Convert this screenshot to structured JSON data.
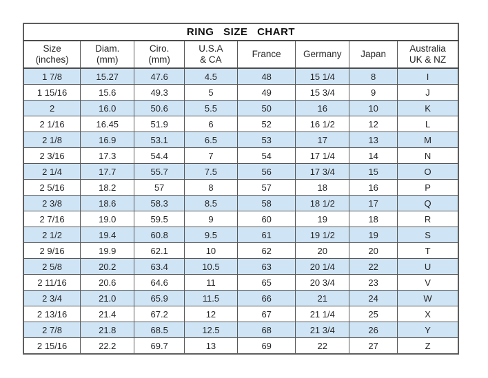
{
  "colors": {
    "row_alt_blue": "#cfe4f5",
    "row_white": "#ffffff",
    "border": "#565656",
    "text": "#262626",
    "background": "#ffffff"
  },
  "chart_data": {
    "type": "table",
    "title": "RING SIZE CHART",
    "columns": [
      {
        "key": "size-inches",
        "label": "Size (inches)",
        "line1": "Size",
        "line2": "(inches)"
      },
      {
        "key": "diam-mm",
        "label": "Diam. (mm)",
        "line1": "Diam.",
        "line2": "(mm)"
      },
      {
        "key": "ciro-mm",
        "label": "Ciro. (mm)",
        "line1": "Ciro.",
        "line2": "(mm)"
      },
      {
        "key": "usa-ca",
        "label": "U.S.A & CA",
        "line1": "U.S.A",
        "line2": "& CA"
      },
      {
        "key": "france",
        "label": "France",
        "line1": "France",
        "line2": ""
      },
      {
        "key": "germany",
        "label": "Germany",
        "line1": "Germany",
        "line2": ""
      },
      {
        "key": "japan",
        "label": "Japan",
        "line1": "Japan",
        "line2": ""
      },
      {
        "key": "australia-uk-nz",
        "label": "Australia UK & NZ",
        "line1": "Australia",
        "line2": "UK & NZ"
      }
    ],
    "rows": [
      [
        "1 7/8",
        "15.27",
        "47.6",
        "4.5",
        "48",
        "15 1/4",
        "8",
        "I"
      ],
      [
        "1 15/16",
        "15.6",
        "49.3",
        "5",
        "49",
        "15 3/4",
        "9",
        "J"
      ],
      [
        "2",
        "16.0",
        "50.6",
        "5.5",
        "50",
        "16",
        "10",
        "K"
      ],
      [
        "2 1/16",
        "16.45",
        "51.9",
        "6",
        "52",
        "16 1/2",
        "12",
        "L"
      ],
      [
        "2 1/8",
        "16.9",
        "53.1",
        "6.5",
        "53",
        "17",
        "13",
        "M"
      ],
      [
        "2 3/16",
        "17.3",
        "54.4",
        "7",
        "54",
        "17 1/4",
        "14",
        "N"
      ],
      [
        "2 1/4",
        "17.7",
        "55.7",
        "7.5",
        "56",
        "17 3/4",
        "15",
        "O"
      ],
      [
        "2 5/16",
        "18.2",
        "57",
        "8",
        "57",
        "18",
        "16",
        "P"
      ],
      [
        "2 3/8",
        "18.6",
        "58.3",
        "8.5",
        "58",
        "18 1/2",
        "17",
        "Q"
      ],
      [
        "2 7/16",
        "19.0",
        "59.5",
        "9",
        "60",
        "19",
        "18",
        "R"
      ],
      [
        "2 1/2",
        "19.4",
        "60.8",
        "9.5",
        "61",
        "19 1/2",
        "19",
        "S"
      ],
      [
        "2 9/16",
        "19.9",
        "62.1",
        "10",
        "62",
        "20",
        "20",
        "T"
      ],
      [
        "2 5/8",
        "20.2",
        "63.4",
        "10.5",
        "63",
        "20 1/4",
        "22",
        "U"
      ],
      [
        "2 11/16",
        "20.6",
        "64.6",
        "11",
        "65",
        "20 3/4",
        "23",
        "V"
      ],
      [
        "2 3/4",
        "21.0",
        "65.9",
        "11.5",
        "66",
        "21",
        "24",
        "W"
      ],
      [
        "2 13/16",
        "21.4",
        "67.2",
        "12",
        "67",
        "21 1/4",
        "25",
        "X"
      ],
      [
        "2 7/8",
        "21.8",
        "68.5",
        "12.5",
        "68",
        "21 3/4",
        "26",
        "Y"
      ],
      [
        "2 15/16",
        "22.2",
        "69.7",
        "13",
        "69",
        "22",
        "27",
        "Z"
      ]
    ]
  }
}
